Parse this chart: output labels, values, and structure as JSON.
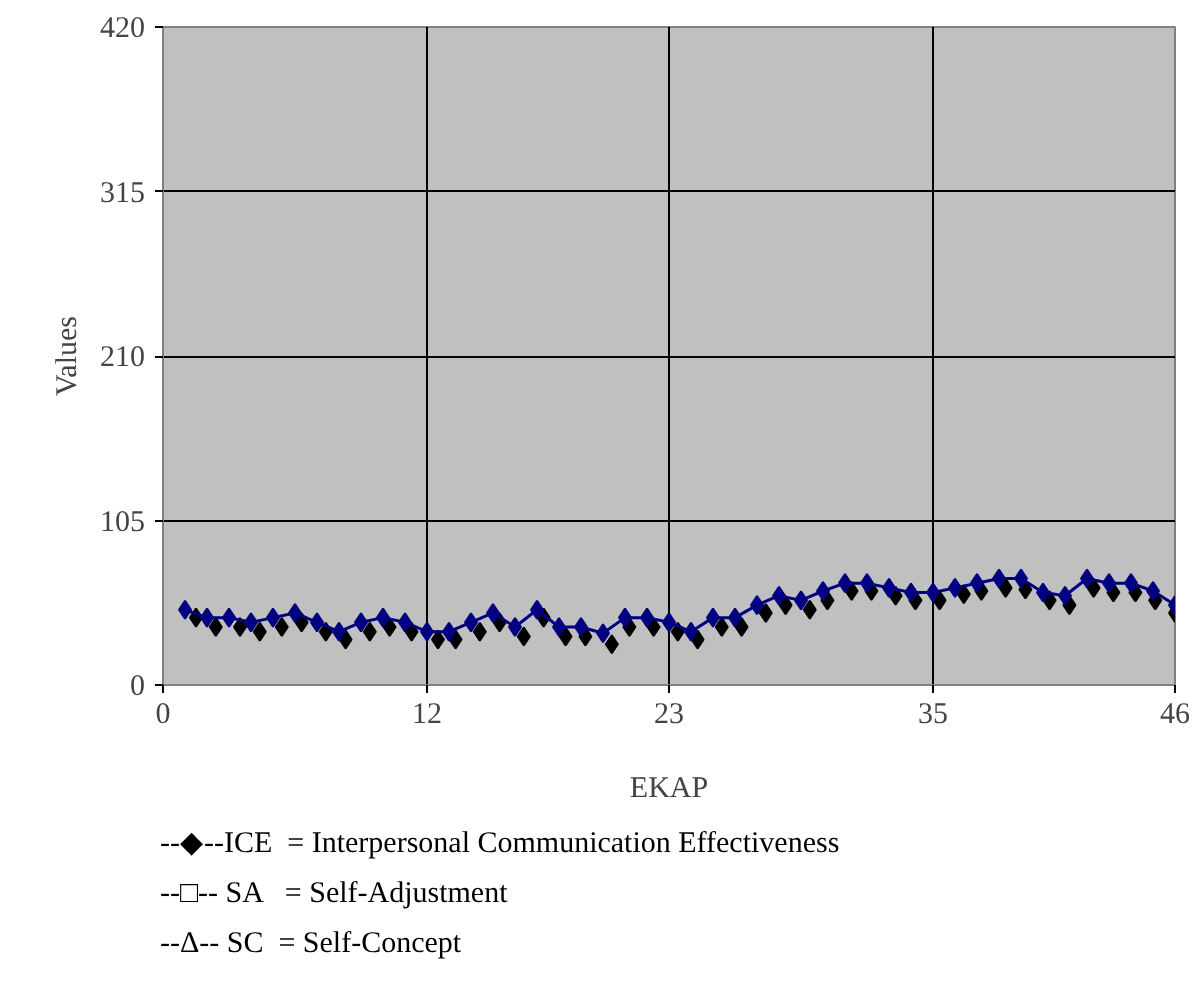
{
  "chart_data": {
    "type": "line",
    "xlabel": "EKAP",
    "ylabel": "Values",
    "xlim": [
      0,
      46
    ],
    "xticks": [
      0,
      12,
      23,
      35,
      46
    ],
    "ylim": [
      0,
      420
    ],
    "yticks": [
      0,
      105,
      210,
      315,
      420
    ],
    "grid": true,
    "marker": "diamond",
    "series": [
      {
        "type": "scatter",
        "color": "#000000",
        "x": [
          1.5,
          2.4,
          3.5,
          4.4,
          5.4,
          6.3,
          7.4,
          8.3,
          9.4,
          10.3,
          11.3,
          12.5,
          13.3,
          14.4,
          15.3,
          16.4,
          17.3,
          18.3,
          19.2,
          20.4,
          21.2,
          22.3,
          23.4,
          24.3,
          25.4,
          26.3,
          27.4,
          28.3,
          29.4,
          30.2,
          31.3,
          32.2,
          33.3,
          34.2,
          35.3,
          36.4,
          37.2,
          38.3,
          39.2,
          40.3,
          41.2,
          42.3,
          43.2,
          44.2,
          45.1,
          46.0
        ],
        "values": [
          43,
          37,
          37,
          34,
          37,
          40,
          34,
          29,
          34,
          37,
          34,
          29,
          29,
          34,
          40,
          31,
          43,
          31,
          31,
          26,
          37,
          37,
          34,
          29,
          37,
          37,
          46,
          51,
          48,
          54,
          60,
          60,
          57,
          54,
          54,
          58,
          60,
          62,
          61,
          54,
          51,
          62,
          59,
          59,
          54,
          46
        ]
      },
      {
        "color": "#000080",
        "x": [
          1,
          2,
          3,
          4,
          5,
          6,
          7,
          8,
          9,
          10,
          11,
          12,
          13,
          14,
          15,
          16,
          17,
          18,
          19,
          20,
          21,
          22,
          23,
          24,
          25,
          26,
          27,
          28,
          29,
          30,
          31,
          32,
          33,
          34,
          35,
          36,
          37,
          38,
          39,
          40,
          41,
          42,
          43,
          44,
          45,
          46
        ],
        "values": [
          48,
          43,
          43,
          40,
          43,
          46,
          40,
          34,
          40,
          43,
          40,
          34,
          34,
          40,
          46,
          37,
          48,
          37,
          37,
          33,
          43,
          43,
          40,
          34,
          43,
          43,
          51,
          57,
          54,
          60,
          65,
          65,
          62,
          59,
          59,
          62,
          65,
          68,
          68,
          59,
          57,
          68,
          65,
          65,
          60,
          51
        ]
      }
    ],
    "annotations": [
      "--◆--ICE  = Interpersonal Communication Effectiveness",
      "--□-- SA   = Self-Adjustment",
      "--Δ-- SC  = Self-Concept"
    ]
  }
}
